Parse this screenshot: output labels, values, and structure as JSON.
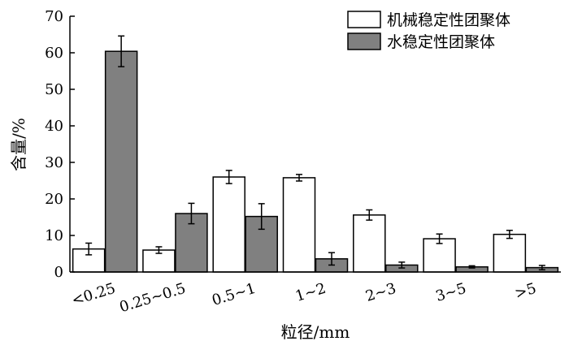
{
  "chart_data": {
    "type": "bar",
    "categories": [
      "<0.25",
      "0.25~0.5",
      "0.5~1",
      "1~2",
      "2~3",
      "3~5",
      ">5"
    ],
    "series": [
      {
        "name": "机械稳定性团聚体",
        "values": [
          6.3,
          6.0,
          26.0,
          25.8,
          15.6,
          9.1,
          10.3
        ],
        "errors": [
          1.6,
          0.9,
          1.8,
          0.9,
          1.4,
          1.3,
          1.1
        ],
        "color": "#ffffff"
      },
      {
        "name": "水稳定性团聚体",
        "values": [
          60.4,
          16.0,
          15.2,
          3.6,
          1.9,
          1.4,
          1.2
        ],
        "errors": [
          4.2,
          2.8,
          3.5,
          1.7,
          0.8,
          0.3,
          0.6
        ],
        "color": "#808080"
      }
    ],
    "xlabel": "粒径/mm",
    "ylabel": "含量/%",
    "ylim": [
      0,
      70
    ],
    "yticks": [
      0,
      10,
      20,
      30,
      40,
      50,
      60,
      70
    ],
    "legend_position": "top-right",
    "grid": false
  }
}
